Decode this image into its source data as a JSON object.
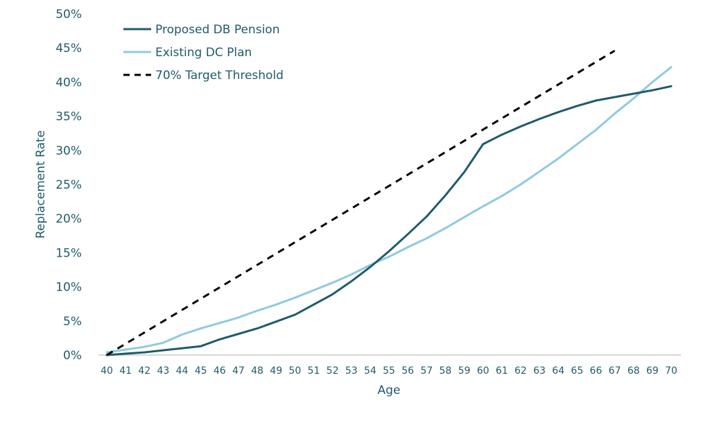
{
  "chart_data": {
    "type": "line",
    "title": "",
    "xlabel": "Age",
    "ylabel": "Replacement Rate",
    "x": [
      40,
      41,
      42,
      43,
      44,
      45,
      46,
      47,
      48,
      49,
      50,
      51,
      52,
      53,
      54,
      55,
      56,
      57,
      58,
      59,
      60,
      61,
      62,
      63,
      64,
      65,
      66,
      67,
      68,
      69,
      70
    ],
    "y_ticks": [
      "0%",
      "5%",
      "10%",
      "15%",
      "20%",
      "25%",
      "30%",
      "35%",
      "40%",
      "45%",
      "50%"
    ],
    "ylim": [
      0,
      50
    ],
    "xlim": [
      40,
      70
    ],
    "grid": false,
    "legend_position": "top-left",
    "series": [
      {
        "name": "Proposed DB Pension",
        "color": "#1f5a6b",
        "style": "solid",
        "x": [
          40,
          41,
          42,
          43,
          44,
          45,
          46,
          47,
          48,
          49,
          50,
          51,
          52,
          53,
          54,
          55,
          56,
          57,
          58,
          59,
          60,
          61,
          62,
          63,
          64,
          65,
          66,
          67,
          68,
          69,
          70
        ],
        "values": [
          0.0,
          0.2,
          0.4,
          0.7,
          1.0,
          1.3,
          2.3,
          3.1,
          3.9,
          4.9,
          5.9,
          7.4,
          8.9,
          10.8,
          12.9,
          15.2,
          17.7,
          20.3,
          23.4,
          26.8,
          30.9,
          32.3,
          33.5,
          34.6,
          35.6,
          36.5,
          37.3,
          37.8,
          38.3,
          38.8,
          39.4
        ]
      },
      {
        "name": "Existing DC Plan",
        "color": "#8ecae0",
        "style": "solid",
        "x": [
          40,
          41,
          42,
          43,
          44,
          45,
          46,
          47,
          48,
          49,
          50,
          51,
          52,
          53,
          54,
          55,
          56,
          57,
          58,
          59,
          60,
          61,
          62,
          63,
          64,
          65,
          66,
          67,
          68,
          69,
          70
        ],
        "values": [
          0.4,
          0.8,
          1.2,
          1.8,
          3.0,
          3.9,
          4.7,
          5.5,
          6.5,
          7.4,
          8.4,
          9.5,
          10.6,
          11.8,
          13.2,
          14.4,
          15.8,
          17.1,
          18.6,
          20.2,
          21.8,
          23.3,
          25.0,
          26.9,
          28.8,
          30.9,
          33.0,
          35.4,
          37.6,
          40.0,
          42.2
        ]
      },
      {
        "name": "70% Target Threshold",
        "color": "#000000",
        "style": "dashed",
        "x": [
          40,
          67
        ],
        "values": [
          0.0,
          44.6
        ]
      }
    ]
  }
}
